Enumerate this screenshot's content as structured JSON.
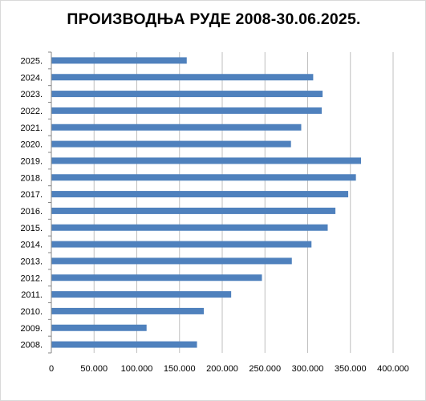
{
  "chart_data": {
    "type": "bar",
    "orientation": "horizontal",
    "title": "ПРОИЗВОДЊА РУДЕ 2008-30.06.2025.",
    "xlabel": "",
    "ylabel": "",
    "categories": [
      "2025.",
      "2024.",
      "2023.",
      "2022.",
      "2021.",
      "2020.",
      "2019.",
      "2018.",
      "2017.",
      "2016.",
      "2015.",
      "2014.",
      "2013.",
      "2012.",
      "2011.",
      "2010.",
      "2009.",
      "2008."
    ],
    "values": [
      158000,
      306000,
      317000,
      316000,
      292000,
      280000,
      362000,
      356000,
      347000,
      332000,
      323000,
      304000,
      281000,
      246000,
      210000,
      178000,
      111000,
      170000
    ],
    "xlim": [
      0,
      400000
    ],
    "xticks": [
      0,
      50000,
      100000,
      150000,
      200000,
      250000,
      300000,
      350000,
      400000
    ],
    "xtick_labels": [
      "0",
      "50.000",
      "100.000",
      "150.000",
      "200.000",
      "250.000",
      "300.000",
      "350.000",
      "400.000"
    ],
    "grid": "vertical",
    "legend": "none",
    "bar_color": "#4f81bd",
    "grid_color": "#bfbfbf"
  }
}
